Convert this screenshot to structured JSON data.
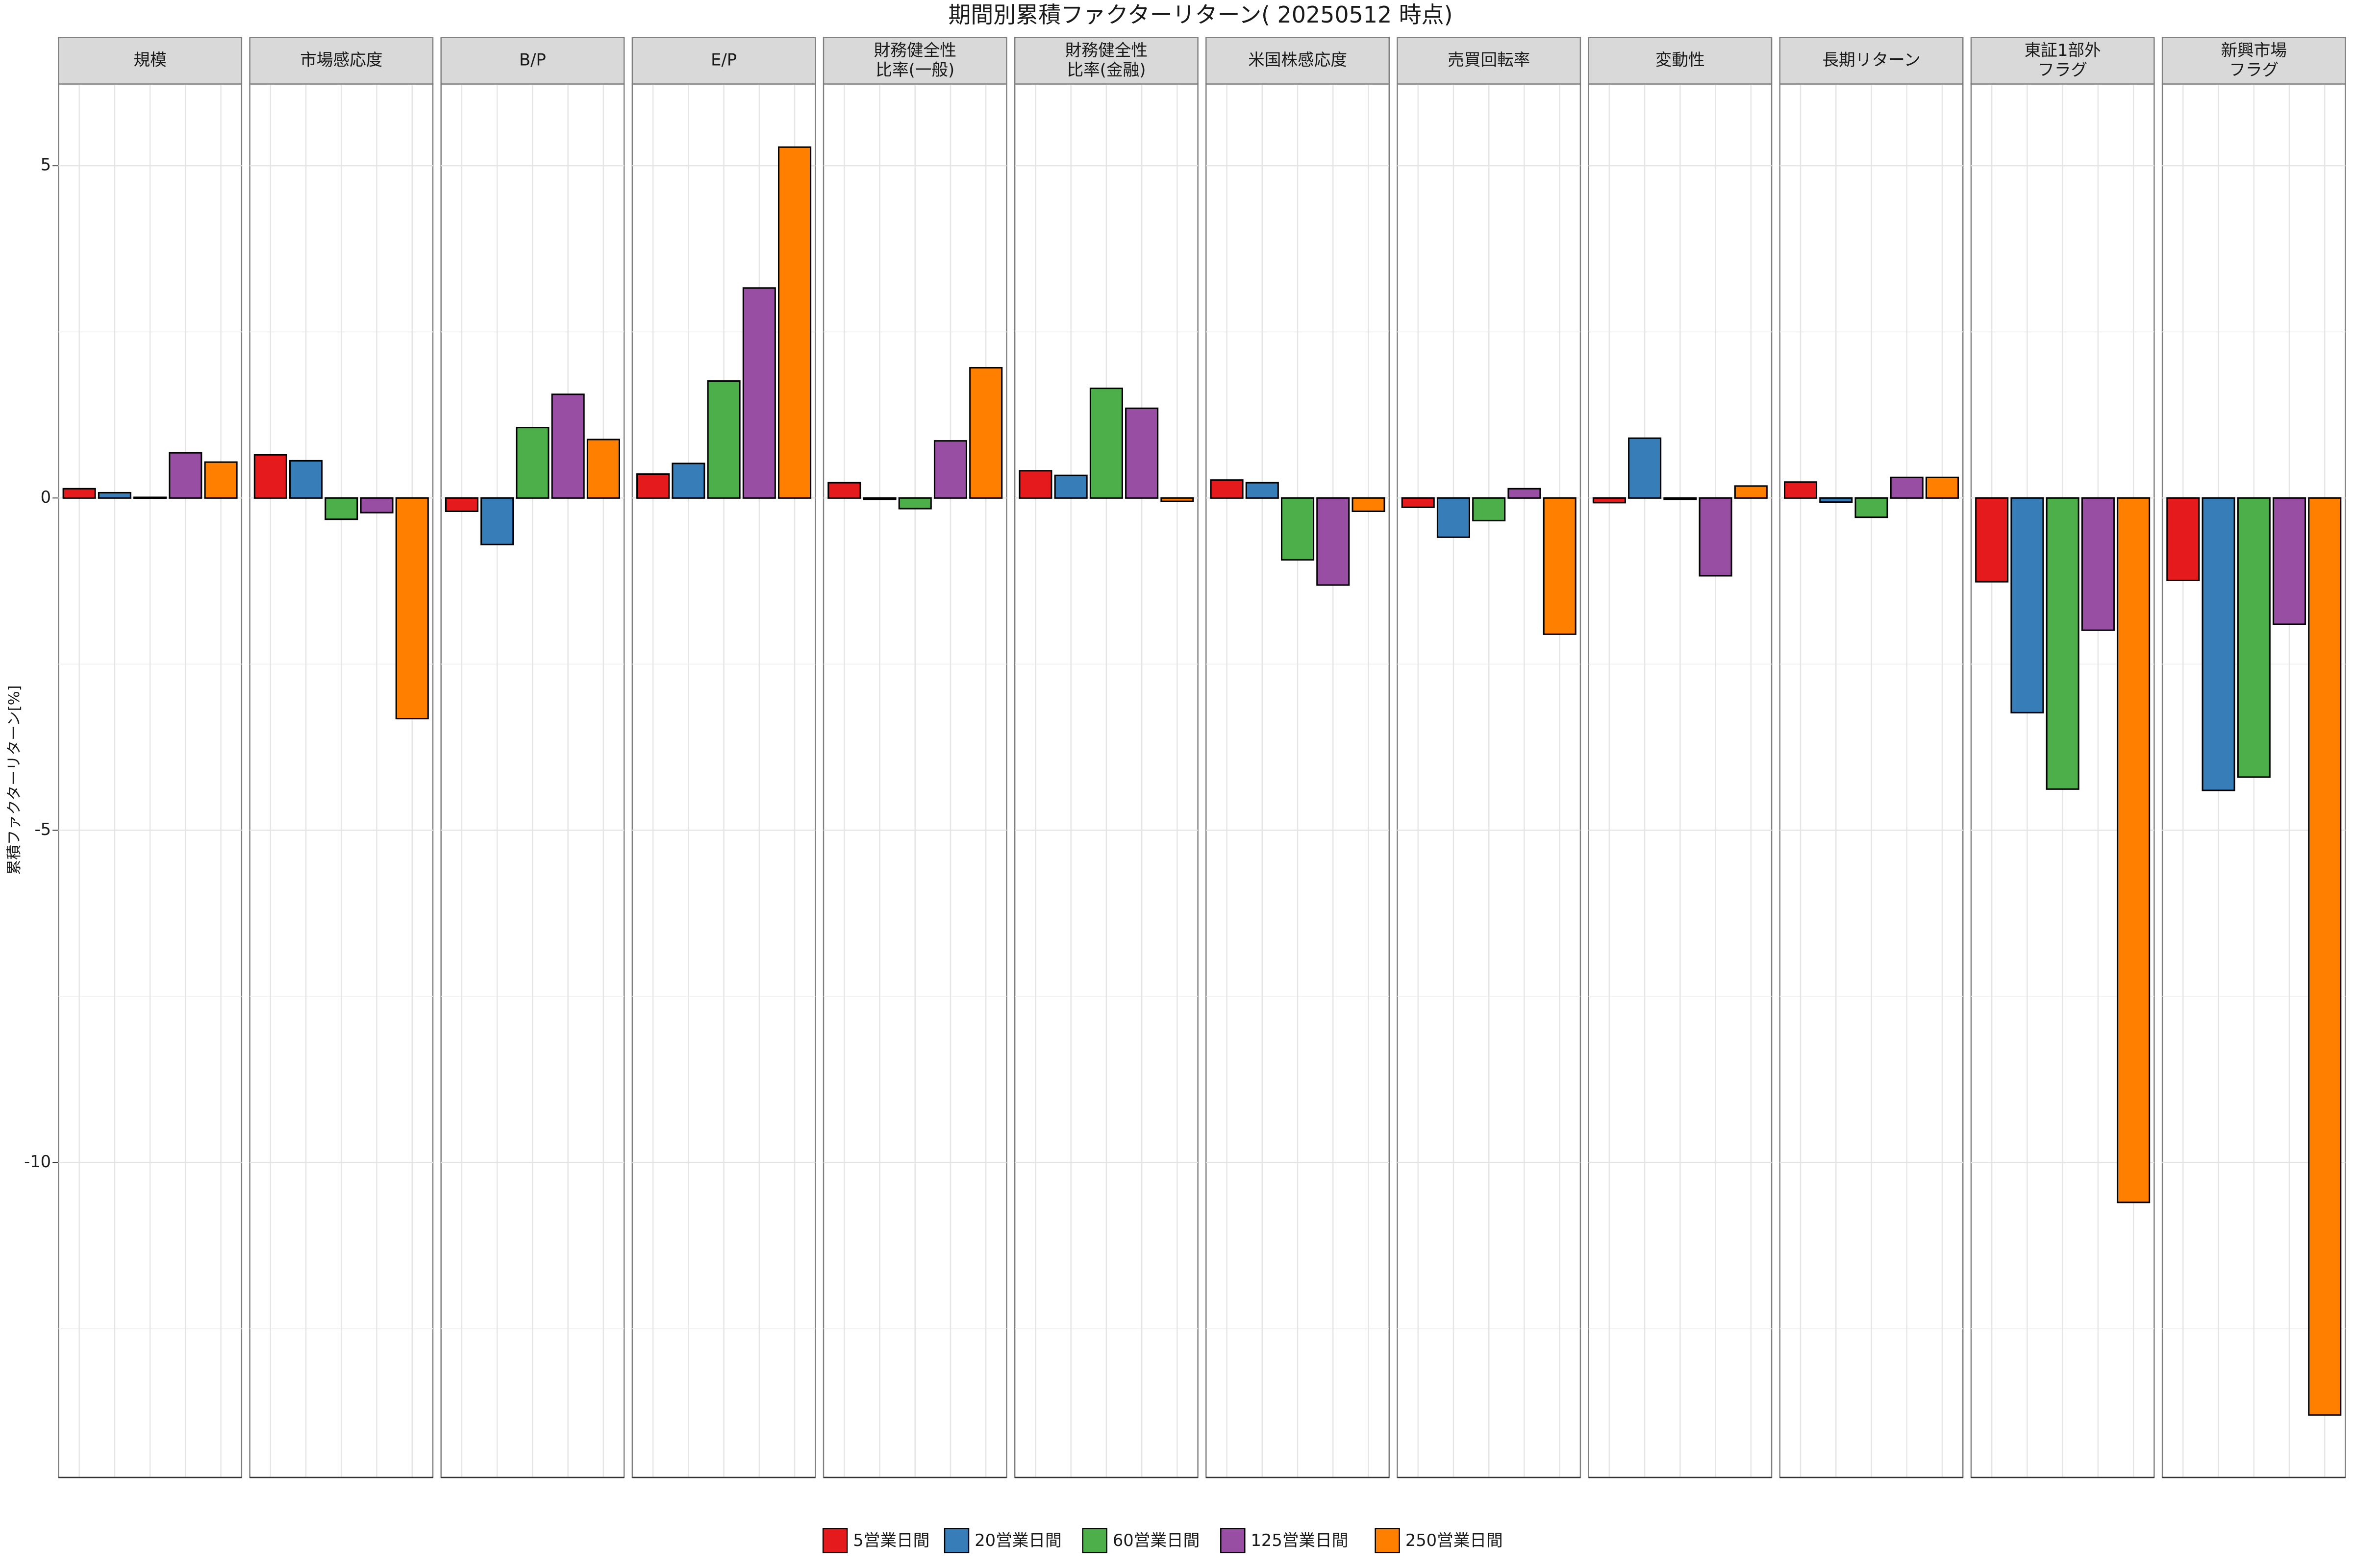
{
  "chart_data": {
    "type": "bar",
    "title": "期間別累積ファクターリターン( 20250512 時点)",
    "y_label": "累積ファクターリターン[%]",
    "categories": [
      "規模",
      "市場感応度",
      "B/P",
      "E/P",
      "財務健全性\n比率(一般)",
      "財務健全性\n比率(金融)",
      "米国株感応度",
      "売買回転率",
      "変動性",
      "長期リターン",
      "東証1部外\nフラグ",
      "新興市場\nフラグ"
    ],
    "series": [
      {
        "name": "5営業日間",
        "color": "#e41a1c",
        "values": [
          0.14,
          0.65,
          -0.2,
          0.36,
          0.23,
          0.41,
          0.27,
          -0.14,
          -0.07,
          0.24,
          -1.26,
          -1.24
        ]
      },
      {
        "name": "20営業日間",
        "color": "#377eb8",
        "values": [
          0.08,
          0.56,
          -0.7,
          0.52,
          -0.02,
          0.34,
          0.23,
          -0.59,
          0.9,
          -0.06,
          -3.23,
          -4.4
        ]
      },
      {
        "name": "60営業日間",
        "color": "#4daf4a",
        "values": [
          0.01,
          -0.32,
          1.06,
          1.76,
          -0.16,
          1.65,
          -0.93,
          -0.34,
          -0.02,
          -0.29,
          -4.38,
          -4.2
        ]
      },
      {
        "name": "125営業日間",
        "color": "#984ea3",
        "values": [
          0.68,
          -0.22,
          1.56,
          3.16,
          0.86,
          1.35,
          -1.31,
          0.14,
          -1.17,
          0.31,
          -1.99,
          -1.9
        ]
      },
      {
        "name": "250営業日間",
        "color": "#ff7f00",
        "values": [
          0.54,
          -3.32,
          0.88,
          5.28,
          1.96,
          -0.05,
          -0.2,
          -2.05,
          0.18,
          0.31,
          -10.6,
          -13.8
        ]
      }
    ],
    "ylim": [
      -14.74,
      6.23
    ],
    "yticks": [
      -10,
      -5,
      0,
      5
    ],
    "grid": true,
    "legend": "bottom"
  }
}
